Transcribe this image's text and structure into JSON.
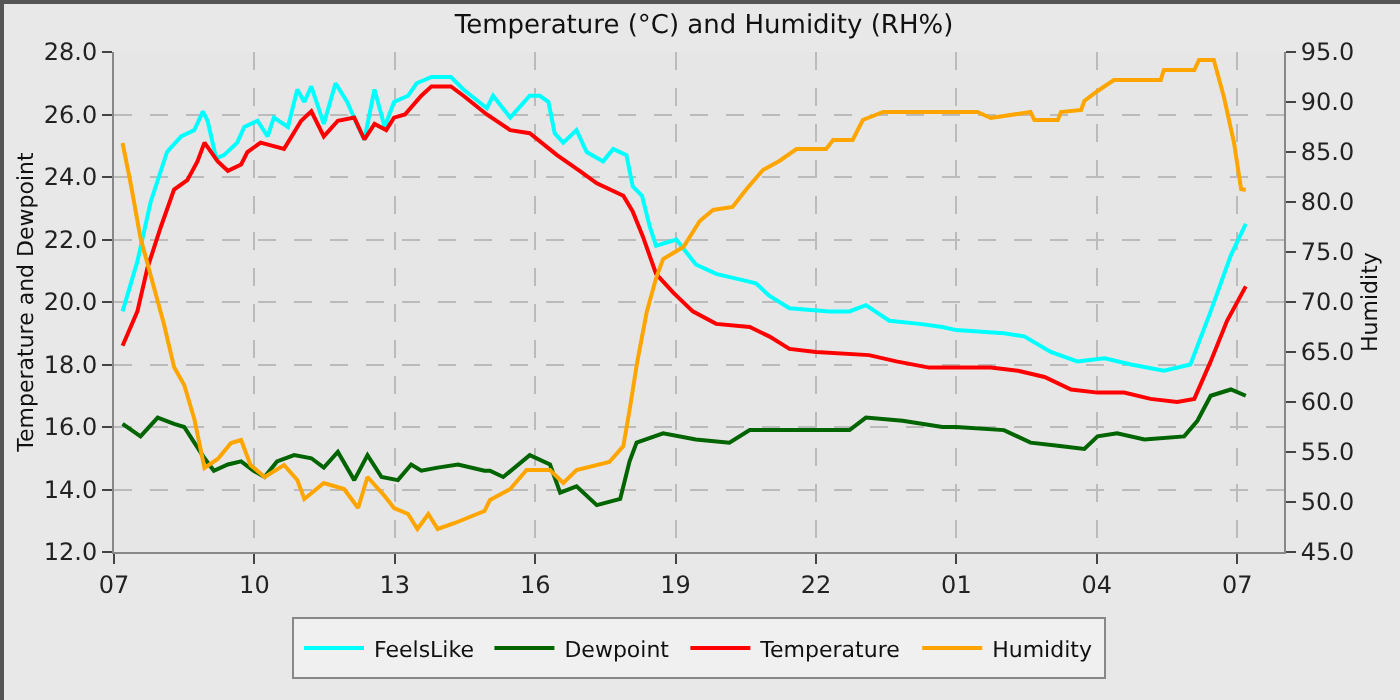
{
  "chart_data": {
    "type": "line",
    "title": "Temperature (°C) and Humidity (RH%)",
    "ylabel": "Temperature and Dewpoint",
    "y2label": "Humidity",
    "xlim": [
      "--01-01T07:00",
      "--01-02T08:00"
    ],
    "xticks": [
      {
        "value": "--01-01T07:00",
        "label": "07"
      },
      {
        "value": "--01-01T10:00",
        "label": "10"
      },
      {
        "value": "--01-01T13:00",
        "label": "13"
      },
      {
        "value": "--01-01T16:00",
        "label": "16"
      },
      {
        "value": "--01-01T19:00",
        "label": "19"
      },
      {
        "value": "--01-01T22:00",
        "label": "22"
      },
      {
        "value": "--01-02T01:00",
        "label": "01"
      },
      {
        "value": "--01-02T04:00",
        "label": "04"
      },
      {
        "value": "--01-02T07:00",
        "label": "07"
      }
    ],
    "ylim": [
      12,
      28
    ],
    "yticks": [
      {
        "value": 12,
        "label": "12.0"
      },
      {
        "value": 14,
        "label": "14.0"
      },
      {
        "value": 16,
        "label": "16.0"
      },
      {
        "value": 18,
        "label": "18.0"
      },
      {
        "value": 20,
        "label": "20.0"
      },
      {
        "value": 22,
        "label": "22.0"
      },
      {
        "value": 24,
        "label": "24.0"
      },
      {
        "value": 26,
        "label": "26.0"
      },
      {
        "value": 28,
        "label": "28.0"
      }
    ],
    "y2lim": [
      45,
      95
    ],
    "y2ticks": [
      {
        "value": 45,
        "label": "45.0"
      },
      {
        "value": 50,
        "label": "50.0"
      },
      {
        "value": 55,
        "label": "55.0"
      },
      {
        "value": 60,
        "label": "60.0"
      },
      {
        "value": 65,
        "label": "65.0"
      },
      {
        "value": 70,
        "label": "70.0"
      },
      {
        "value": 75,
        "label": "75.0"
      },
      {
        "value": 80,
        "label": "80.0"
      },
      {
        "value": 85,
        "label": "85.0"
      },
      {
        "value": 90,
        "label": "90.0"
      },
      {
        "value": 95,
        "label": "95.0"
      }
    ],
    "grid": true,
    "legend": "bottom",
    "series": [
      {
        "name": "FeelsLike",
        "color": "#00ffff",
        "x": [
          "--01-01T07:11",
          "--01-01T07:30",
          "--01-01T07:47",
          "--01-01T08:08",
          "--01-01T08:26",
          "--01-01T08:43",
          "--01-01T08:54",
          "--01-01T09:00",
          "--01-01T09:11",
          "--01-01T09:21",
          "--01-01T09:38",
          "--01-01T09:47",
          "--01-01T10:04",
          "--01-01T10:17",
          "--01-01T10:25",
          "--01-01T10:43",
          "--01-01T10:55",
          "--01-01T11:04",
          "--01-01T11:13",
          "--01-01T11:29",
          "--01-01T11:44",
          "--01-01T11:59",
          "--01-01T12:13",
          "--01-01T12:21",
          "--01-01T12:34",
          "--01-01T12:47",
          "--01-01T12:59",
          "--01-01T13:17",
          "--01-01T13:28",
          "--01-01T13:47",
          "--01-01T14:12",
          "--01-01T14:28",
          "--01-01T14:58",
          "--01-01T15:06",
          "--01-01T15:28",
          "--01-01T15:53",
          "--01-01T16:06",
          "--01-01T16:17",
          "--01-01T16:25",
          "--01-01T16:36",
          "--01-01T16:53",
          "--01-01T17:06",
          "--01-01T17:27",
          "--01-01T17:40",
          "--01-01T17:57",
          "--01-01T18:05",
          "--01-01T18:17",
          "--01-01T18:27",
          "--01-01T18:35",
          "--01-01T19:01",
          "--01-01T19:26",
          "--01-01T19:52",
          "--01-01T20:26",
          "--01-01T20:43",
          "--01-01T21:00",
          "--01-01T21:26",
          "--01-01T22:17",
          "--01-01T22:43",
          "--01-01T23:04",
          "--01-01T23:34",
          "--01-02T00:13",
          "--01-02T00:42",
          "--01-02T01:00",
          "--01-02T02:01",
          "--01-02T02:27",
          "--01-02T03:01",
          "--01-02T03:35",
          "--01-02T04:10",
          "--01-02T04:44",
          "--01-02T05:26",
          "--01-02T06:00",
          "--01-02T06:26",
          "--01-02T06:52",
          "--01-02T07:11"
        ],
        "values": [
          19.7,
          21.3,
          23.2,
          24.8,
          25.3,
          25.5,
          26.1,
          25.8,
          24.6,
          24.7,
          25.1,
          25.6,
          25.8,
          25.3,
          25.9,
          25.6,
          26.8,
          26.4,
          26.9,
          25.7,
          27.0,
          26.4,
          25.6,
          25.2,
          26.8,
          25.6,
          26.4,
          26.6,
          27.0,
          27.2,
          27.2,
          26.8,
          26.2,
          26.6,
          25.9,
          26.6,
          26.6,
          26.4,
          25.4,
          25.1,
          25.5,
          24.8,
          24.5,
          24.9,
          24.7,
          23.7,
          23.4,
          22.4,
          21.8,
          22.0,
          21.2,
          20.9,
          20.7,
          20.6,
          20.2,
          19.8,
          19.7,
          19.7,
          19.9,
          19.4,
          19.3,
          19.2,
          19.1,
          19.0,
          18.9,
          18.4,
          18.1,
          18.2,
          18.0,
          17.8,
          18.0,
          19.7,
          21.5,
          22.5
        ]
      },
      {
        "name": "Dewpoint",
        "color": "#006400",
        "x": [
          "--01-01T07:11",
          "--01-01T07:34",
          "--01-01T07:56",
          "--01-01T08:17",
          "--01-01T08:30",
          "--01-01T08:43",
          "--01-01T08:56",
          "--01-01T09:08",
          "--01-01T09:26",
          "--01-01T09:43",
          "--01-01T09:59",
          "--01-01T10:13",
          "--01-01T10:29",
          "--01-01T10:51",
          "--01-01T11:13",
          "--01-01T11:29",
          "--01-01T11:47",
          "--01-01T12:08",
          "--01-01T12:25",
          "--01-01T12:43",
          "--01-01T13:04",
          "--01-01T13:21",
          "--01-01T13:34",
          "--01-01T13:55",
          "--01-01T14:21",
          "--01-01T14:55",
          "--01-01T15:02",
          "--01-01T15:19",
          "--01-01T15:53",
          "--01-01T16:19",
          "--01-01T16:32",
          "--01-01T16:53",
          "--01-01T17:19",
          "--01-01T17:49",
          "--01-01T18:01",
          "--01-01T18:10",
          "--01-01T18:44",
          "--01-01T19:26",
          "--01-01T20:09",
          "--01-01T20:35",
          "--01-01T21:35",
          "--01-01T22:43",
          "--01-01T23:04",
          "--01-01T23:51",
          "--01-02T00:42",
          "--01-02T01:00",
          "--01-02T02:01",
          "--01-02T02:35",
          "--01-02T03:10",
          "--01-02T03:44",
          "--01-02T04:01",
          "--01-02T04:26",
          "--01-02T05:01",
          "--01-02T05:52",
          "--01-02T06:09",
          "--01-02T06:26",
          "--01-02T06:52",
          "--01-02T07:11"
        ],
        "values": [
          16.1,
          15.7,
          16.3,
          16.1,
          16.0,
          15.5,
          15.0,
          14.6,
          14.8,
          14.9,
          14.6,
          14.4,
          14.9,
          15.1,
          15.0,
          14.7,
          15.2,
          14.3,
          15.1,
          14.4,
          14.3,
          14.8,
          14.6,
          14.7,
          14.8,
          14.6,
          14.6,
          14.4,
          15.1,
          14.8,
          13.9,
          14.1,
          13.5,
          13.7,
          14.9,
          15.5,
          15.8,
          15.6,
          15.5,
          15.9,
          15.9,
          15.9,
          16.3,
          16.2,
          16.0,
          16.0,
          15.9,
          15.5,
          15.4,
          15.3,
          15.7,
          15.8,
          15.6,
          15.7,
          16.2,
          17.0,
          17.2,
          17.0
        ]
      },
      {
        "name": "Temperature",
        "color": "#ff0000",
        "x": [
          "--01-01T07:11",
          "--01-01T07:30",
          "--01-01T07:43",
          "--01-01T08:00",
          "--01-01T08:17",
          "--01-01T08:34",
          "--01-01T08:47",
          "--01-01T08:56",
          "--01-01T09:13",
          "--01-01T09:26",
          "--01-01T09:43",
          "--01-01T09:51",
          "--01-01T10:08",
          "--01-01T10:38",
          "--01-01T11:00",
          "--01-01T11:13",
          "--01-01T11:29",
          "--01-01T11:47",
          "--01-01T12:08",
          "--01-01T12:21",
          "--01-01T12:34",
          "--01-01T12:49",
          "--01-01T12:59",
          "--01-01T13:13",
          "--01-01T13:34",
          "--01-01T13:47",
          "--01-01T14:12",
          "--01-01T14:28",
          "--01-01T14:58",
          "--01-01T15:28",
          "--01-01T15:53",
          "--01-01T16:28",
          "--01-01T16:57",
          "--01-01T17:19",
          "--01-01T17:53",
          "--01-01T18:05",
          "--01-01T18:18",
          "--01-01T18:35",
          "--01-01T18:57",
          "--01-01T19:22",
          "--01-01T19:52",
          "--01-01T20:35",
          "--01-01T21:00",
          "--01-01T21:26",
          "--01-01T22:00",
          "--01-01T23:08",
          "--01-01T23:43",
          "--01-02T00:25",
          "--01-02T01:44",
          "--01-02T02:19",
          "--01-02T02:53",
          "--01-02T03:27",
          "--01-02T04:01",
          "--01-02T04:35",
          "--01-02T05:09",
          "--01-02T05:43",
          "--01-02T06:05",
          "--01-02T06:26",
          "--01-02T06:47",
          "--01-02T07:11"
        ],
        "values": [
          18.6,
          19.7,
          21.1,
          22.4,
          23.6,
          23.9,
          24.5,
          25.1,
          24.5,
          24.2,
          24.4,
          24.8,
          25.1,
          24.9,
          25.8,
          26.1,
          25.3,
          25.8,
          25.9,
          25.2,
          25.7,
          25.5,
          25.9,
          26.0,
          26.6,
          26.9,
          26.9,
          26.6,
          26.0,
          25.5,
          25.4,
          24.7,
          24.2,
          23.8,
          23.4,
          22.9,
          22.1,
          20.9,
          20.3,
          19.7,
          19.3,
          19.2,
          18.9,
          18.5,
          18.4,
          18.3,
          18.1,
          17.9,
          17.9,
          17.8,
          17.6,
          17.2,
          17.1,
          17.1,
          16.9,
          16.8,
          16.9,
          18.1,
          19.4,
          20.5
        ]
      },
      {
        "name": "Humidity",
        "color": "#ffa500",
        "axis": "y2",
        "x": [
          "--01-01T07:11",
          "--01-01T07:22",
          "--01-01T07:34",
          "--01-01T07:49",
          "--01-01T08:04",
          "--01-01T08:17",
          "--01-01T08:30",
          "--01-01T08:43",
          "--01-01T08:56",
          "--01-01T09:13",
          "--01-01T09:30",
          "--01-01T09:43",
          "--01-01T09:55",
          "--01-01T10:13",
          "--01-01T10:38",
          "--01-01T10:55",
          "--01-01T11:04",
          "--01-01T11:29",
          "--01-01T11:55",
          "--01-01T12:13",
          "--01-01T12:25",
          "--01-01T12:47",
          "--01-01T12:59",
          "--01-01T13:17",
          "--01-01T13:29",
          "--01-01T13:43",
          "--01-01T13:55",
          "--01-01T14:17",
          "--01-01T14:55",
          "--01-01T15:02",
          "--01-01T15:28",
          "--01-01T15:49",
          "--01-01T16:19",
          "--01-01T16:36",
          "--01-01T16:53",
          "--01-01T17:35",
          "--01-01T17:53",
          "--01-01T18:01",
          "--01-01T18:11",
          "--01-01T18:23",
          "--01-01T18:35",
          "--01-01T18:44",
          "--01-01T19:10",
          "--01-01T19:31",
          "--01-01T19:48",
          "--01-01T20:13",
          "--01-01T20:31",
          "--01-01T20:52",
          "--01-01T21:13",
          "--01-01T21:35",
          "--01-01T22:13",
          "--01-01T22:22",
          "--01-01T22:47",
          "--01-01T23:00",
          "--01-01T23:26",
          "--01-02T00:42",
          "--01-02T01:27",
          "--01-02T01:44",
          "--01-02T02:35",
          "--01-02T02:40",
          "--01-02T03:10",
          "--01-02T03:14",
          "--01-02T03:40",
          "--01-02T03:44",
          "--01-02T04:01",
          "--01-02T04:22",
          "--01-02T05:22",
          "--01-02T05:26",
          "--01-02T06:05",
          "--01-02T06:11",
          "--01-02T06:30",
          "--01-02T06:43",
          "--01-02T06:56",
          "--01-02T07:05",
          "--01-02T07:11"
        ],
        "values": [
          85.9,
          81.6,
          76.4,
          72.1,
          67.8,
          63.5,
          61.7,
          58.3,
          53.4,
          54.3,
          55.9,
          56.2,
          53.7,
          52.5,
          53.7,
          52.2,
          50.3,
          51.9,
          51.3,
          49.4,
          52.5,
          50.6,
          49.4,
          48.8,
          47.3,
          48.8,
          47.3,
          47.9,
          49.1,
          50.2,
          51.3,
          53.2,
          53.2,
          51.9,
          53.2,
          54.0,
          55.6,
          59.2,
          64.1,
          69.0,
          72.4,
          74.3,
          75.5,
          78.1,
          79.2,
          79.5,
          81.3,
          83.2,
          84.1,
          85.3,
          85.3,
          86.2,
          86.2,
          88.2,
          89.0,
          89.0,
          89.0,
          88.4,
          89.0,
          88.2,
          88.2,
          89.0,
          89.2,
          90.1,
          91.1,
          92.2,
          92.2,
          93.2,
          93.2,
          94.2,
          94.2,
          90.5,
          85.9,
          81.3,
          81.2
        ]
      }
    ]
  }
}
